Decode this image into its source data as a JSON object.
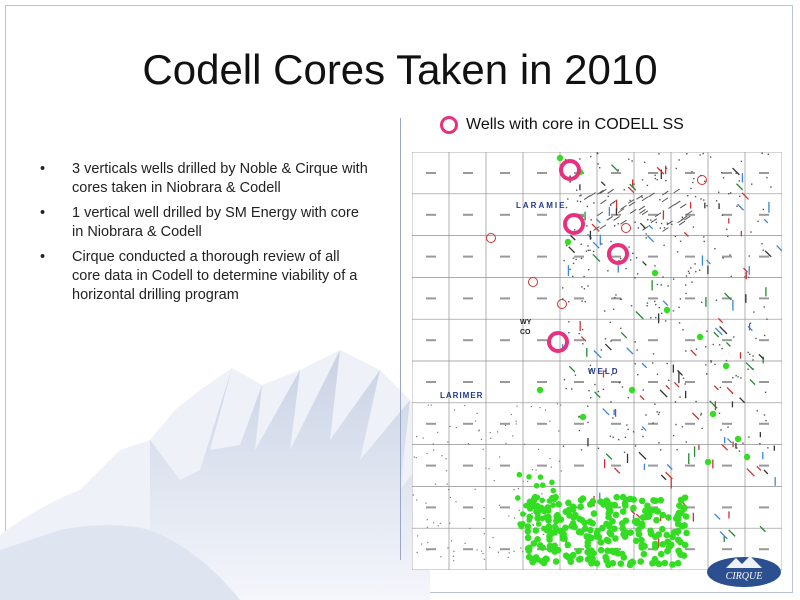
{
  "title": "Codell Cores Taken in 2010",
  "bullets": [
    "3 verticals wells drilled by Noble & Cirque with cores taken in Niobrara & Codell",
    "1 vertical well drilled by SM Energy with core in Niobrara & Codell",
    "Cirque conducted a thorough review of all core data in Codell to determine viability of a horizontal drilling program"
  ],
  "bullet_symbol": "•",
  "legend": {
    "label": "Wells with core in CODELL SS",
    "ring_color": "#e8317c"
  },
  "map": {
    "county_labels": {
      "laramie": "LARAMIE",
      "weld": "WELD",
      "larimer": "LARIMER"
    },
    "state_labels": {
      "wy": "WY",
      "co": "CO"
    },
    "colors": {
      "grid": "#8f8f8f",
      "green_well": "#33dd22",
      "red_well": "#cc3333",
      "blue_well": "#3a86d8",
      "label_blue": "#223a8a"
    }
  },
  "logo": {
    "text": "CIRQUE"
  }
}
